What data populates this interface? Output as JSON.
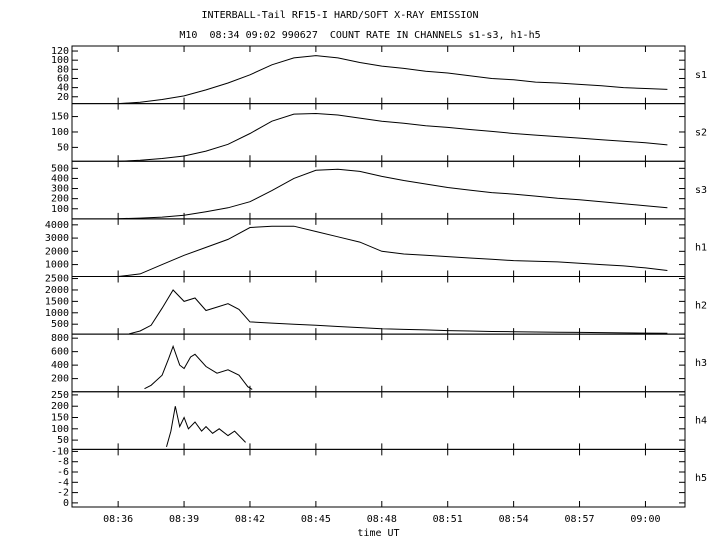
{
  "chart_data": [
    {
      "type": "line",
      "title": "INTERBALL-Tail RF15-I HARD/SOFT X-RAY EMISSION",
      "subtitle": "M10  08:34 09:02 990627  COUNT RATE IN CHANNELS s1-s3, h1-h5",
      "xlim": [
        33.9,
        61.8
      ],
      "ylim": [
        5,
        131
      ],
      "yticks": [
        20,
        40,
        60,
        80,
        100,
        120
      ],
      "x": [
        36,
        37,
        38,
        39,
        40,
        41,
        42,
        43,
        44,
        45,
        46,
        47,
        48,
        49,
        50,
        51,
        52,
        53,
        54,
        55,
        56,
        57,
        58,
        59,
        60,
        61
      ],
      "series": [
        {
          "name": "s1",
          "color": "#000000",
          "values": [
            5,
            8,
            14,
            22,
            35,
            50,
            68,
            90,
            105,
            110,
            105,
            95,
            87,
            82,
            76,
            72,
            66,
            60,
            57,
            52,
            50,
            47,
            44,
            40,
            38,
            36
          ]
        }
      ]
    },
    {
      "type": "line",
      "xlim": [
        33.9,
        61.8
      ],
      "ylim": [
        5,
        192
      ],
      "yticks": [
        50,
        100,
        150
      ],
      "x": [
        36,
        37,
        38,
        39,
        40,
        41,
        42,
        43,
        44,
        45,
        46,
        47,
        48,
        49,
        50,
        51,
        52,
        53,
        54,
        55,
        56,
        57,
        58,
        59,
        60,
        61
      ],
      "series": [
        {
          "name": "s2",
          "color": "#000000",
          "values": [
            5,
            8,
            14,
            22,
            38,
            60,
            95,
            135,
            158,
            160,
            155,
            145,
            135,
            128,
            120,
            115,
            108,
            102,
            95,
            90,
            85,
            80,
            75,
            70,
            65,
            58
          ]
        }
      ]
    },
    {
      "type": "line",
      "xlim": [
        33.9,
        61.8
      ],
      "ylim": [
        0,
        570
      ],
      "yticks": [
        100,
        200,
        300,
        400,
        500
      ],
      "x": [
        36,
        37,
        38,
        39,
        40,
        41,
        42,
        43,
        44,
        45,
        46,
        47,
        48,
        49,
        50,
        51,
        52,
        53,
        54,
        55,
        56,
        57,
        58,
        59,
        60,
        61
      ],
      "series": [
        {
          "name": "s3",
          "color": "#000000",
          "values": [
            2,
            8,
            18,
            35,
            70,
            110,
            170,
            280,
            400,
            480,
            490,
            470,
            420,
            380,
            345,
            310,
            285,
            260,
            245,
            225,
            205,
            190,
            170,
            150,
            130,
            110
          ]
        }
      ]
    },
    {
      "type": "line",
      "xlim": [
        33.9,
        61.8
      ],
      "ylim": [
        100,
        4450
      ],
      "yticks": [
        1000,
        2000,
        3000,
        4000
      ],
      "x": [
        36,
        37,
        38,
        39,
        40,
        41,
        42,
        43,
        44,
        45,
        46,
        47,
        48,
        49,
        50,
        51,
        52,
        53,
        54,
        55,
        56,
        57,
        58,
        59,
        60,
        61
      ],
      "series": [
        {
          "name": "h1",
          "color": "#000000",
          "values": [
            100,
            300,
            1000,
            1700,
            2300,
            2900,
            3800,
            3900,
            3900,
            3500,
            3100,
            2700,
            2000,
            1800,
            1700,
            1600,
            1500,
            1400,
            1300,
            1250,
            1200,
            1100,
            1000,
            900,
            750,
            550
          ]
        }
      ]
    },
    {
      "type": "line",
      "xlim": [
        33.9,
        61.8
      ],
      "ylim": [
        65,
        2590
      ],
      "yticks": [
        500,
        1000,
        1500,
        2000,
        2500
      ],
      "x": [
        36.5,
        37,
        37.5,
        38,
        38.5,
        39,
        39.5,
        40,
        40.5,
        41,
        41.5,
        42,
        43,
        44,
        45,
        46,
        47,
        48,
        49,
        50,
        51,
        52,
        53,
        54,
        55,
        56,
        57,
        58,
        59,
        60,
        61
      ],
      "series": [
        {
          "name": "h2",
          "color": "#000000",
          "values": [
            80,
            200,
            450,
            1200,
            2000,
            1500,
            1650,
            1100,
            1250,
            1400,
            1150,
            600,
            550,
            500,
            450,
            400,
            350,
            300,
            270,
            250,
            220,
            200,
            180,
            170,
            160,
            150,
            140,
            130,
            120,
            110,
            100
          ]
        }
      ]
    },
    {
      "type": "line",
      "xlim": [
        33.9,
        61.8
      ],
      "ylim": [
        5,
        860
      ],
      "yticks": [
        200,
        400,
        600,
        800
      ],
      "x": [
        37.2,
        37.5,
        38,
        38.3,
        38.5,
        38.8,
        39,
        39.3,
        39.5,
        40,
        40.5,
        41,
        41.5,
        41.9,
        42.1
      ],
      "series": [
        {
          "name": "h3",
          "color": "#000000",
          "values": [
            50,
            100,
            250,
            500,
            680,
            400,
            350,
            520,
            560,
            380,
            280,
            330,
            250,
            80,
            40
          ]
        }
      ]
    },
    {
      "type": "line",
      "xlim": [
        33.9,
        61.8
      ],
      "ylim": [
        9,
        264
      ],
      "yticks": [
        50,
        100,
        150,
        200,
        250
      ],
      "x": [
        38.2,
        38.4,
        38.6,
        38.8,
        39,
        39.2,
        39.5,
        39.8,
        40,
        40.3,
        40.6,
        41,
        41.3,
        41.6,
        41.8
      ],
      "series": [
        {
          "name": "h4",
          "color": "#000000",
          "values": [
            20,
            90,
            200,
            110,
            150,
            100,
            130,
            90,
            110,
            80,
            100,
            70,
            90,
            60,
            40
          ]
        }
      ]
    },
    {
      "type": "line",
      "xlim": [
        33.9,
        61.8
      ],
      "ylim": [
        0.8,
        -10.4
      ],
      "yticks": [
        -10,
        -8,
        -6,
        -4,
        -2,
        0
      ],
      "x": [],
      "series": [
        {
          "name": "h5",
          "color": "#000000",
          "values": []
        }
      ],
      "xlabel": "time UT",
      "xticks": [
        {
          "value": 36,
          "label": "08:36"
        },
        {
          "value": 39,
          "label": "08:39"
        },
        {
          "value": 42,
          "label": "08:42"
        },
        {
          "value": 45,
          "label": "08:45"
        },
        {
          "value": 48,
          "label": "08:48"
        },
        {
          "value": 51,
          "label": "08:51"
        },
        {
          "value": 54,
          "label": "08:54"
        },
        {
          "value": 57,
          "label": "08:57"
        },
        {
          "value": 60,
          "label": "09:00"
        }
      ]
    }
  ]
}
